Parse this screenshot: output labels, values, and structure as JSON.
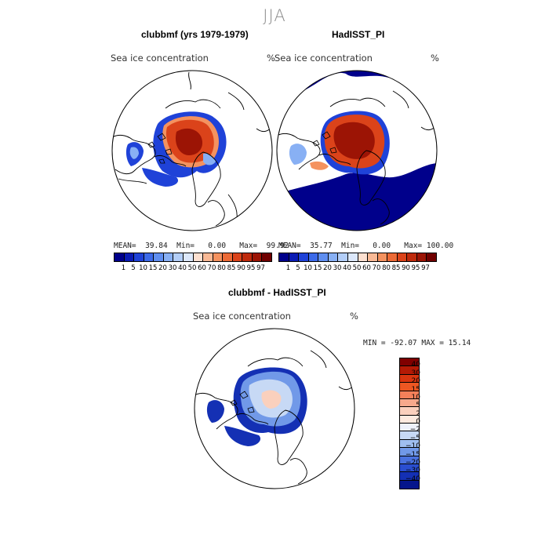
{
  "season": "JJA",
  "panels": [
    {
      "title": "clubbmf (yrs 1979-1979)",
      "subtitle": "Sea ice concentration",
      "unit": "%",
      "stats": {
        "mean_label": "MEAN=",
        "mean": "39.84",
        "min_label": "Min=",
        "min": "0.00",
        "max_label": "Max=",
        "max": "99.92"
      }
    },
    {
      "title": "HadISST_PI",
      "subtitle": "Sea ice concentration",
      "unit": "%",
      "stats": {
        "mean_label": "MEAN=",
        "mean": "35.77",
        "min_label": "Min=",
        "min": "0.00",
        "max_label": "Max=",
        "max": "100.00"
      }
    },
    {
      "title": "clubbmf - HadISST_PI",
      "subtitle": "Sea ice concentration",
      "unit": "%",
      "minmax_text": "MIN = -92.07 MAX =  15.14"
    }
  ],
  "concentration_colorbar": {
    "colors": [
      "#00008b",
      "#0a1bb4",
      "#1f42d8",
      "#3c6ae9",
      "#5f8ef0",
      "#88b0f4",
      "#b3cef8",
      "#dce8fb",
      "#fde0d0",
      "#f9b995",
      "#f4925f",
      "#ec6a36",
      "#db431a",
      "#bf2a0c",
      "#9c1405",
      "#700000"
    ],
    "labels": [
      "1",
      "5",
      "10",
      "15",
      "20",
      "30",
      "40",
      "50",
      "60",
      "70",
      "80",
      "85",
      "90",
      "95",
      "97"
    ]
  },
  "difference_colorbar": {
    "colors": [
      "#800000",
      "#b51a05",
      "#d9350f",
      "#ee5722",
      "#f4805a",
      "#f7a98c",
      "#fad0bd",
      "#fdeadf",
      "#eef2fb",
      "#c7d9f5",
      "#9fbef0",
      "#7199e8",
      "#4a72df",
      "#2a4ed0",
      "#1430b4",
      "#05158c"
    ],
    "labels": [
      "40",
      "30",
      "20",
      "15",
      "10",
      "5",
      "2",
      "0",
      "−2",
      "−5",
      "−10",
      "−15",
      "−20",
      "−30",
      "−40"
    ]
  },
  "map_colors": {
    "ocean": "#ffffff",
    "land_outline": "#000000",
    "ice_core": "#9c1405",
    "ice_high": "#db431a",
    "ice_mid": "#f4925f",
    "ice_edge": "#1f42d8",
    "ice_low": "#88b0f4",
    "open_water_blue": "#00008b",
    "diff_neg_strong": "#1430b4",
    "diff_neg": "#7199e8",
    "diff_neg_weak": "#c7d9f5",
    "diff_pos_weak": "#fad0bd"
  }
}
